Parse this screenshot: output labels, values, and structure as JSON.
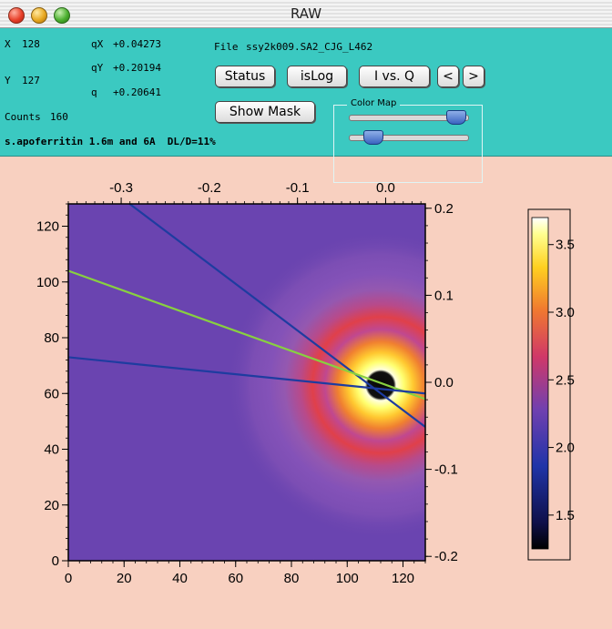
{
  "window": {
    "title": "RAW"
  },
  "readout": {
    "x_label": "X",
    "x_value": "128",
    "y_label": "Y",
    "y_value": "127",
    "qx_label": "qX",
    "qx_value": "+0.04273",
    "qy_label": "qY",
    "qy_value": "+0.20194",
    "q_label": "q",
    "q_value": "+0.20641",
    "counts_label": "Counts",
    "counts_value": "160",
    "file_label": "File",
    "file_value": "ssy2k009.SA2_CJG_L462",
    "sample": "s.apoferritin 1.6m and 6A  DL/D=11%"
  },
  "buttons": {
    "status": "Status",
    "islog": "isLog",
    "ivsq": "I vs. Q",
    "prev": "<",
    "next": ">",
    "show_mask": "Show Mask"
  },
  "color_map": {
    "label": "Color Map",
    "slider_top_level": 0.9,
    "slider_bottom_level": 0.2
  },
  "chart_data": {
    "type": "heatmap",
    "x_bottom": {
      "range": [
        0,
        128
      ],
      "ticks": [
        "0",
        "20",
        "40",
        "60",
        "80",
        "100",
        "120"
      ]
    },
    "y_left": {
      "range": [
        0,
        128
      ],
      "ticks": [
        "0",
        "20",
        "40",
        "60",
        "80",
        "100",
        "120"
      ]
    },
    "x_top": {
      "range": [
        -0.36,
        0.045
      ],
      "ticks": [
        "-0.3",
        "-0.2",
        "-0.1",
        "0.0"
      ]
    },
    "y_right": {
      "range": [
        -0.205,
        0.205
      ],
      "ticks": [
        "-0.2",
        "-0.1",
        "0.0",
        "0.1",
        "0.2"
      ]
    },
    "beam_center": {
      "x": 112,
      "y": 63
    },
    "colorbar": {
      "range": [
        1.25,
        3.7
      ],
      "ticks": [
        "1.5",
        "2.0",
        "2.5",
        "3.0",
        "3.5"
      ]
    },
    "lines": [
      {
        "color": "#1e3ca0",
        "points": [
          [
            22,
            128
          ],
          [
            128,
            48
          ]
        ]
      },
      {
        "color": "#88d040",
        "points": [
          [
            0,
            104
          ],
          [
            128,
            58
          ]
        ]
      },
      {
        "color": "#1e3ca0",
        "points": [
          [
            0,
            73
          ],
          [
            128,
            60
          ]
        ]
      }
    ]
  }
}
